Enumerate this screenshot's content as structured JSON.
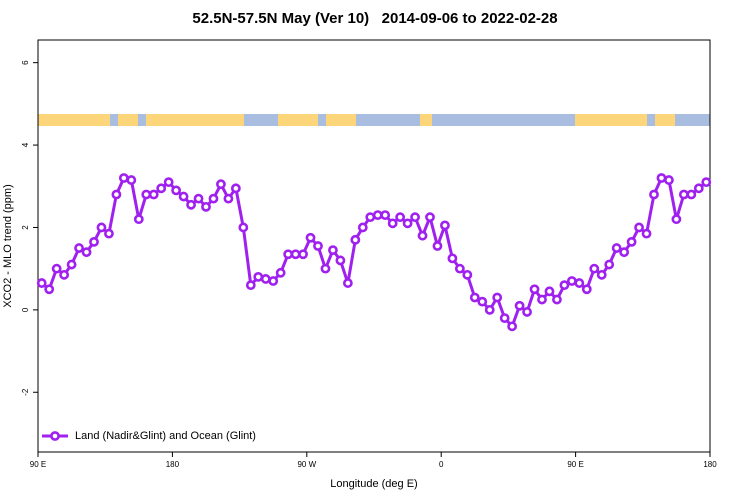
{
  "chart_data": {
    "type": "line",
    "title": "52.5N-57.5N May (Ver 10)   2014-09-06 to 2022-02-28",
    "xlabel": "Longitude (deg E)",
    "ylabel": "XCO2 - MLO trend (ppm)",
    "x": [
      92.5,
      97.5,
      102.5,
      107.5,
      112.5,
      117.5,
      122.5,
      127.5,
      132.5,
      137.5,
      142.5,
      147.5,
      152.5,
      157.5,
      162.5,
      167.5,
      172.5,
      177.5,
      182.5,
      187.5,
      192.5,
      197.5,
      202.5,
      207.5,
      212.5,
      217.5,
      222.5,
      227.5,
      232.5,
      237.5,
      242.5,
      247.5,
      252.5,
      257.5,
      262.5,
      267.5,
      272.5,
      277.5,
      282.5,
      287.5,
      292.5,
      297.5,
      302.5,
      307.5,
      312.5,
      317.5,
      322.5,
      327.5,
      332.5,
      337.5,
      342.5,
      347.5,
      352.5,
      357.5,
      362.5,
      367.5,
      372.5,
      377.5,
      382.5,
      387.5,
      392.5,
      397.5,
      402.5,
      407.5,
      412.5,
      417.5,
      422.5,
      427.5,
      432.5,
      437.5,
      442.5,
      447.5,
      452.5,
      457.5,
      462.5,
      467.5,
      472.5,
      477.5,
      482.5,
      487.5,
      492.5,
      497.5,
      502.5,
      507.5,
      512.5,
      517.5,
      522.5,
      527.5,
      532.5,
      537.5
    ],
    "series": [
      {
        "name": "Land (Nadir&Glint) and Ocean (Glint)",
        "color": "#a020f0",
        "values": [
          0.65,
          0.5,
          1.0,
          0.85,
          1.1,
          1.5,
          1.4,
          1.65,
          2.0,
          1.85,
          2.8,
          3.2,
          3.15,
          2.2,
          2.8,
          2.8,
          2.95,
          3.1,
          2.9,
          2.75,
          2.55,
          2.7,
          2.5,
          2.7,
          3.05,
          2.7,
          2.95,
          2.0,
          0.6,
          0.8,
          0.75,
          0.7,
          0.9,
          1.35,
          1.35,
          1.35,
          1.75,
          1.55,
          1.0,
          1.45,
          1.2,
          0.65,
          1.7,
          2.0,
          2.25,
          2.3,
          2.3,
          2.1,
          2.25,
          2.1,
          2.25,
          1.8,
          2.25,
          1.55,
          2.05,
          1.25,
          1.0,
          0.85,
          0.3,
          0.2,
          0.0,
          0.3,
          -0.2,
          -0.4,
          0.1,
          -0.05,
          0.5,
          0.25,
          0.45,
          0.25,
          0.6,
          0.7,
          0.65,
          0.5,
          1.0,
          0.85,
          1.1,
          1.5,
          1.4,
          1.65,
          2.0,
          1.85,
          2.8,
          3.2,
          3.15,
          2.2,
          2.8,
          2.8,
          2.95,
          3.1
        ]
      }
    ],
    "xlim": [
      90,
      540
    ],
    "xticks": [
      {
        "value": 90,
        "label": "90 E"
      },
      {
        "value": 180,
        "label": "180"
      },
      {
        "value": 270,
        "label": "90 W"
      },
      {
        "value": 360,
        "label": "0"
      },
      {
        "value": 450,
        "label": "90 E"
      },
      {
        "value": 540,
        "label": "180"
      }
    ],
    "ylim": [
      -3.45,
      6.55
    ],
    "yticks": [
      -2,
      0,
      2,
      4,
      6
    ],
    "legend": "bottomleft",
    "grid": false
  }
}
